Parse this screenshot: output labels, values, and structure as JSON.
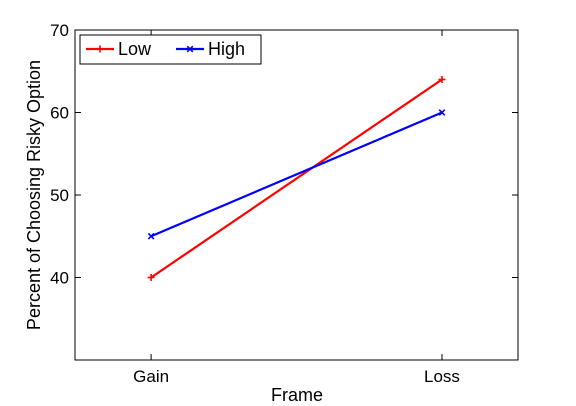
{
  "chart_data": {
    "type": "line",
    "xlabel": "Frame",
    "ylabel": "Percent of Choosing Risky Option",
    "categories": [
      "Gain",
      "Loss"
    ],
    "ylim": [
      30,
      70
    ],
    "yticks": [
      40,
      50,
      60,
      70
    ],
    "grid": false,
    "legend_position": "top-left",
    "series": [
      {
        "name": "Low",
        "values": [
          40,
          64
        ],
        "color": "#ff0000",
        "marker": "plus"
      },
      {
        "name": "High",
        "values": [
          45,
          60
        ],
        "color": "#0000ff",
        "marker": "x"
      }
    ]
  }
}
